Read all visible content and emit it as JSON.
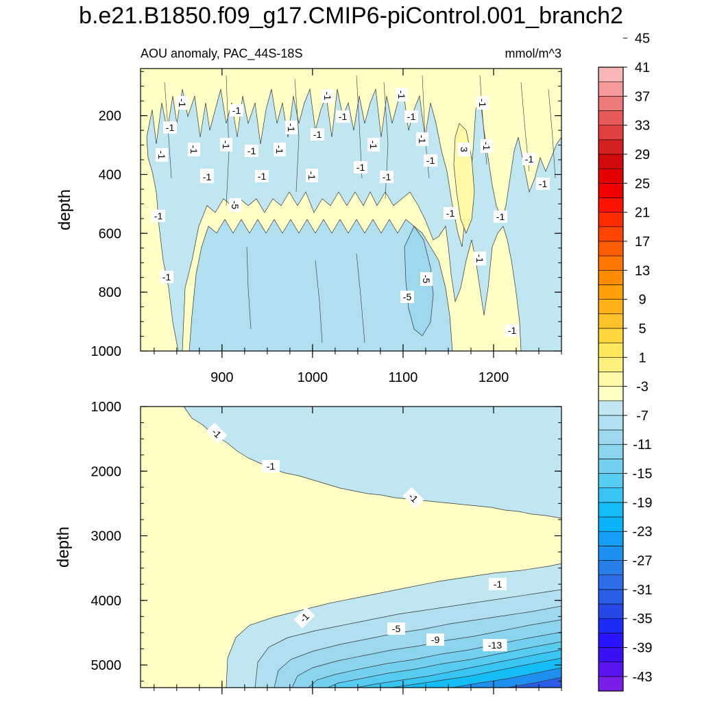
{
  "chart_data": {
    "type": "heatmap",
    "title": "b.e21.B1850.f09_g17.CMIP6-piControl.001_branch2",
    "variable_label": "AOU anomaly, PAC_44S-18S",
    "units": "mmol/m^3",
    "colorbar": {
      "levels": [
        -45,
        -43,
        -41,
        -39,
        -37,
        -35,
        -33,
        -31,
        -29,
        -27,
        -25,
        -23,
        -21,
        -19,
        -17,
        -15,
        -13,
        -11,
        -9,
        -7,
        -5,
        -3,
        -1,
        1,
        3,
        5,
        7,
        9,
        11,
        13,
        15,
        17,
        19,
        21,
        23,
        25,
        27,
        29,
        31,
        33,
        35,
        37,
        39,
        41,
        43,
        45,
        47
      ],
      "tick_labels": [
        "-43",
        "-39",
        "-35",
        "-31",
        "-27",
        "-23",
        "-19",
        "-15",
        "-11",
        "-7",
        "-3",
        "1",
        "5",
        "9",
        "13",
        "17",
        "21",
        "25",
        "29",
        "33",
        "37",
        "41",
        "45"
      ],
      "colors_negative": [
        "#7a1fe6",
        "#5a14f0",
        "#3c10f5",
        "#2a14ff",
        "#1e2cf8",
        "#2648e4",
        "#2a5ee6",
        "#2e6ee8",
        "#2780ea",
        "#1e90f0",
        "#14a0f6",
        "#0ab2fa",
        "#14bdf6",
        "#38c5f2",
        "#58cbf0",
        "#74d0ee",
        "#8ad4ee",
        "#9ed8ee",
        "#b0dfef",
        "#c0e6f1"
      ],
      "colors_positive": [
        "#ffffc6",
        "#fff8a6",
        "#fff07e",
        "#ffe75c",
        "#ffd63e",
        "#ffc22a",
        "#ffb218",
        "#ffa00a",
        "#ff8c00",
        "#ff7600",
        "#ff5e00",
        "#ff4600",
        "#ff2c00",
        "#ff1200",
        "#f20000",
        "#e20000",
        "#d20a0a",
        "#d42020",
        "#e04040",
        "#e85a5a",
        "#ef7a7a",
        "#f49a9a",
        "#f8b6b6"
      ]
    },
    "panels": [
      {
        "name": "upper",
        "ylabel": "depth",
        "xlim": [
          810,
          1275
        ],
        "x_ticks": [
          900,
          1000,
          1100,
          1200
        ],
        "ylim": [
          1000,
          40
        ],
        "y_ticks": [
          200,
          400,
          600,
          800,
          1000
        ],
        "contour_labels": [
          "-1",
          "-1",
          "-1",
          "-1",
          "-1",
          "-1",
          "-1",
          "-1",
          "-1",
          "-1",
          "-1",
          "-1",
          "-1",
          "-1",
          "-1",
          "-1",
          "-1",
          "-1",
          "-1",
          "-1",
          "-1",
          "-1",
          "-1",
          "-1",
          "-1",
          "-1",
          "-1",
          "-1",
          "-1",
          "-1",
          "-1",
          "-1",
          "3",
          "-5",
          "-5",
          "-5",
          "-1"
        ]
      },
      {
        "name": "lower",
        "ylabel": "depth",
        "xlim": [
          810,
          1275
        ],
        "x_ticks": [
          900,
          1000,
          1100,
          1200
        ],
        "ylim": [
          5350,
          1000
        ],
        "y_ticks": [
          1000,
          2000,
          3000,
          4000,
          5000
        ],
        "contour_labels": [
          "-1",
          "-1",
          "-1",
          "-1",
          "-1",
          "-5",
          "-9",
          "-13"
        ]
      }
    ]
  }
}
